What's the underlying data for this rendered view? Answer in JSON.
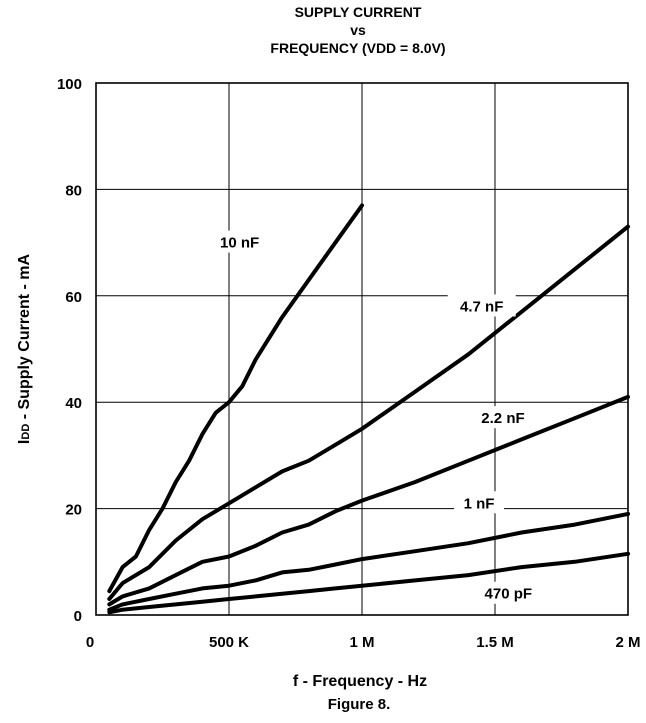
{
  "chart_data": {
    "type": "line",
    "title_lines": [
      "SUPPLY CURRENT",
      "vs",
      "FREQUENCY (VDD = 8.0V)"
    ],
    "xlabel": "f - Frequency - Hz",
    "ylabel_main": "I",
    "ylabel_sub": "DD",
    "ylabel_rest": " - Supply Current - mA",
    "caption": "Figure 8.",
    "xlim": [
      0,
      2000000
    ],
    "ylim": [
      0,
      100
    ],
    "x_ticks": [
      {
        "value": 0,
        "label": "0"
      },
      {
        "value": 500000,
        "label": "500 K"
      },
      {
        "value": 1000000,
        "label": "1 M"
      },
      {
        "value": 1500000,
        "label": "1.5 M"
      },
      {
        "value": 2000000,
        "label": "2 M"
      }
    ],
    "y_ticks": [
      {
        "value": 0,
        "label": "0"
      },
      {
        "value": 20,
        "label": "20"
      },
      {
        "value": 40,
        "label": "40"
      },
      {
        "value": 60,
        "label": "60"
      },
      {
        "value": 80,
        "label": "80"
      },
      {
        "value": 100,
        "label": "100"
      }
    ],
    "grid": true,
    "line_color": "#000000",
    "series": [
      {
        "name": "10 nF",
        "label_at": [
          540000,
          70
        ],
        "x": [
          50000,
          100000,
          150000,
          200000,
          250000,
          300000,
          350000,
          400000,
          450000,
          500000,
          550000,
          600000,
          700000,
          800000,
          900000,
          1000000
        ],
        "y": [
          4.5,
          9,
          11,
          16,
          20,
          25,
          29,
          34,
          38,
          40,
          43,
          48,
          56,
          63,
          70,
          77
        ]
      },
      {
        "name": "4.7 nF",
        "label_at": [
          1450000,
          58
        ],
        "x": [
          50000,
          100000,
          200000,
          300000,
          400000,
          500000,
          600000,
          700000,
          800000,
          900000,
          1000000,
          1200000,
          1400000,
          1600000,
          1800000,
          2000000
        ],
        "y": [
          3,
          6,
          9,
          14,
          18,
          21,
          24,
          27,
          29,
          32,
          35,
          42,
          49,
          57,
          65,
          73
        ]
      },
      {
        "name": "2.2 nF",
        "label_at": [
          1530000,
          37
        ],
        "x": [
          50000,
          100000,
          200000,
          300000,
          400000,
          500000,
          600000,
          700000,
          800000,
          900000,
          1000000,
          1200000,
          1400000,
          1600000,
          1800000,
          2000000
        ],
        "y": [
          2,
          3.5,
          5,
          7.5,
          10,
          11,
          13,
          15.5,
          17,
          19.5,
          21.5,
          25,
          29,
          33,
          37,
          41
        ]
      },
      {
        "name": "1 nF",
        "label_at": [
          1440000,
          21
        ],
        "x": [
          50000,
          100000,
          200000,
          300000,
          400000,
          500000,
          600000,
          700000,
          800000,
          900000,
          1000000,
          1200000,
          1400000,
          1600000,
          1800000,
          2000000
        ],
        "y": [
          1,
          2,
          3,
          4,
          5,
          5.5,
          6.5,
          8,
          8.5,
          9.5,
          10.5,
          12,
          13.5,
          15.5,
          17,
          19
        ]
      },
      {
        "name": "470 pF",
        "label_at": [
          1550000,
          4
        ],
        "x": [
          50000,
          100000,
          200000,
          300000,
          400000,
          500000,
          600000,
          700000,
          800000,
          900000,
          1000000,
          1200000,
          1400000,
          1600000,
          1800000,
          2000000
        ],
        "y": [
          0.5,
          1,
          1.5,
          2,
          2.5,
          3,
          3.5,
          4,
          4.5,
          5,
          5.5,
          6.5,
          7.5,
          9,
          10,
          11.5
        ]
      }
    ]
  }
}
